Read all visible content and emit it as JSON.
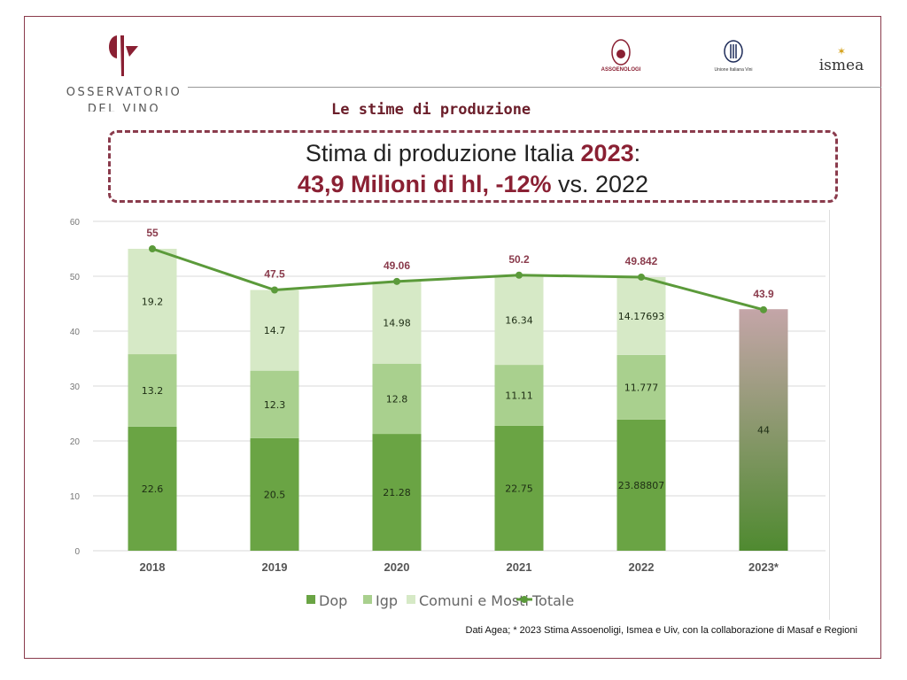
{
  "header": {
    "brand_name": "OSSERVATORIO DEL VINO",
    "brand_line1": "OSSERVATORIO",
    "brand_line2": "DEL VINO",
    "partner_logos": [
      "ASSOENOLOGI",
      "Unione Italiana Vini",
      "ismea"
    ],
    "section_title": "Le stime di produzione"
  },
  "headline": {
    "line1_prefix": "Stima di produzione Italia ",
    "line1_year": "2023",
    "line1_suffix": ":",
    "line2_highlight": "43,9 Milioni di hl, -12%",
    "line2_suffix": " vs. 2022"
  },
  "footer": "Dati Agea; * 2023 Stima Assoenoligi, Ismea e Uiv, con la collaborazione di Masaf e Regioni",
  "colors": {
    "frame": "#8a3b4c",
    "dop": "#6aa444",
    "igp": "#a9d08e",
    "comuni": "#d6e9c6",
    "totale": "#5b9a3a",
    "total_label": "#8a3b4c",
    "estimate_top": "#c4a5a8",
    "estimate_bottom": "#4f8a30"
  },
  "chart_data": {
    "type": "bar",
    "stacked": true,
    "categories": [
      "2018",
      "2019",
      "2020",
      "2021",
      "2022",
      "2023*"
    ],
    "ylim": [
      0,
      60
    ],
    "yticks": [
      "0",
      "10",
      "20",
      "30",
      "40",
      "50",
      "60"
    ],
    "grid": true,
    "legend_position": "bottom",
    "series": [
      {
        "name": "Dop",
        "values": [
          22.6,
          20.5,
          21.28,
          22.75,
          23.88807,
          null
        ],
        "labels": [
          "22.6",
          "20.5",
          "21.28",
          "22.75",
          "23.88807",
          ""
        ]
      },
      {
        "name": "Igp",
        "values": [
          13.2,
          12.3,
          12.8,
          11.11,
          11.777,
          null
        ],
        "labels": [
          "13.2",
          "12.3",
          "12.8",
          "11.11",
          "11.777",
          ""
        ]
      },
      {
        "name": "Comuni e Mosti",
        "values": [
          19.2,
          14.7,
          14.98,
          16.34,
          14.17693,
          null
        ],
        "labels": [
          "19.2",
          "14.7",
          "14.98",
          "16.34",
          "14.17693",
          ""
        ]
      }
    ],
    "estimate_bar": {
      "category": "2023*",
      "value": 44,
      "label": "44"
    },
    "line": {
      "name": "Totale",
      "values": [
        55,
        47.5,
        49.06,
        50.2,
        49.842,
        43.9
      ],
      "labels": [
        "55",
        "47.5",
        "49.06",
        "50.2",
        "49.842",
        "43.9"
      ]
    }
  }
}
